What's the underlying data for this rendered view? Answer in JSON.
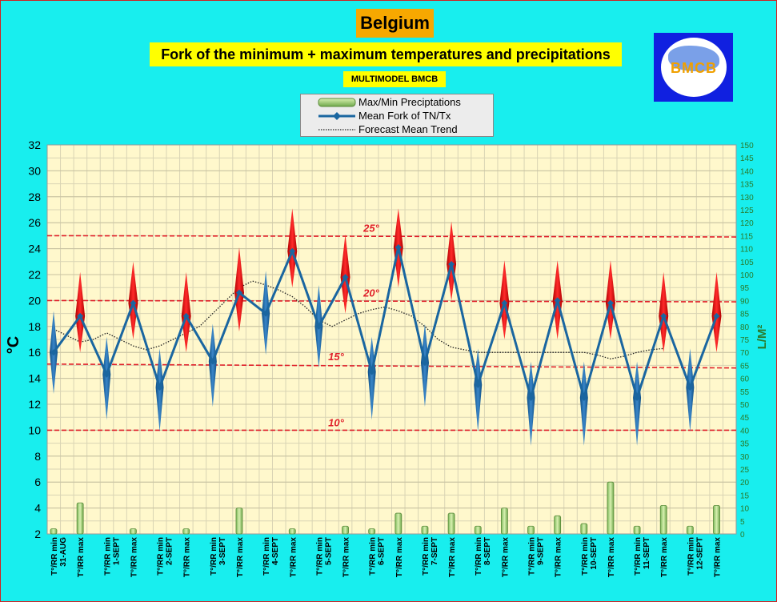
{
  "header": {
    "title": "Belgium",
    "subtitle": "Fork of the minimum + maximum temperatures and precipitations",
    "tag": "MULTIMODEL BMCB",
    "logo_text": "BMCB"
  },
  "legend": {
    "precip": "Max/Min Preciptations",
    "mean": "Mean Fork of TN/Tx",
    "trend": "Forecast Mean Trend"
  },
  "chart_data": {
    "type": "line",
    "ylabel": "°C",
    "y2label": "L/M²",
    "ylim": [
      2,
      32
    ],
    "y2lim": [
      0,
      150
    ],
    "yticks": [
      2,
      4,
      6,
      8,
      10,
      12,
      14,
      16,
      18,
      20,
      22,
      24,
      26,
      28,
      30,
      32
    ],
    "y2ticks": [
      0,
      5,
      10,
      15,
      20,
      25,
      30,
      35,
      40,
      45,
      50,
      55,
      60,
      65,
      70,
      75,
      80,
      85,
      90,
      95,
      100,
      105,
      110,
      115,
      120,
      125,
      130,
      135,
      140,
      145,
      150
    ],
    "categories": [
      {
        "label": "T°/RR min",
        "date": "31-AUG"
      },
      {
        "label": "T°/RR max",
        "date": ""
      },
      {
        "label": "T°/RR min",
        "date": "1-SEPT"
      },
      {
        "label": "T°/RR max",
        "date": ""
      },
      {
        "label": "T°/RR min",
        "date": "2-SEPT"
      },
      {
        "label": "T°/RR max",
        "date": ""
      },
      {
        "label": "T°/RR min",
        "date": "3-SEPT"
      },
      {
        "label": "T°/RR max",
        "date": ""
      },
      {
        "label": "T°/RR min",
        "date": "4-SEPT"
      },
      {
        "label": "T°/RR max",
        "date": ""
      },
      {
        "label": "T°/RR min",
        "date": "5-SEPT"
      },
      {
        "label": "T°/RR max",
        "date": ""
      },
      {
        "label": "T°/RR min",
        "date": "6-SEPT"
      },
      {
        "label": "T°/RR max",
        "date": ""
      },
      {
        "label": "T°/RR min",
        "date": "7-SEPT"
      },
      {
        "label": "T°/RR max",
        "date": ""
      },
      {
        "label": "T°/RR min",
        "date": "8-SEPT"
      },
      {
        "label": "T°/RR max",
        "date": ""
      },
      {
        "label": "T°/RR min",
        "date": "9-SEPT"
      },
      {
        "label": "T°/RR max",
        "date": ""
      },
      {
        "label": "T°/RR min",
        "date": "10-SEPT"
      },
      {
        "label": "T°/RR max",
        "date": ""
      },
      {
        "label": "T°/RR min",
        "date": "11-SEPT"
      },
      {
        "label": "T°/RR max",
        "date": ""
      },
      {
        "label": "T°/RR min",
        "date": "12-SEPT"
      },
      {
        "label": "T°/RR max",
        "date": ""
      }
    ],
    "mean": [
      16.0,
      18.8,
      14.3,
      19.8,
      13.3,
      18.8,
      15.3,
      20.6,
      19.0,
      23.8,
      18.0,
      21.8,
      14.5,
      24.1,
      15.2,
      22.8,
      13.5,
      19.8,
      12.5,
      20.0,
      12.5,
      19.8,
      12.5,
      18.8,
      13.3,
      18.8
    ],
    "fork_min": [
      12.8,
      16.0,
      10.8,
      17.0,
      9.9,
      16.0,
      11.8,
      17.6,
      15.8,
      21.0,
      14.8,
      19.0,
      10.8,
      21.0,
      11.8,
      20.0,
      9.9,
      17.0,
      8.8,
      17.0,
      8.8,
      17.0,
      8.8,
      16.0,
      9.9,
      16.0
    ],
    "fork_max": [
      19.2,
      22.2,
      17.2,
      23.0,
      16.3,
      22.2,
      18.2,
      24.1,
      22.3,
      27.1,
      21.2,
      25.1,
      17.2,
      27.1,
      18.2,
      26.1,
      16.3,
      23.1,
      15.3,
      23.1,
      15.3,
      23.1,
      15.3,
      22.2,
      16.3,
      22.2
    ],
    "trend": [
      17.8,
      17.3,
      16.8,
      17.0,
      17.5,
      17.0,
      16.5,
      16.2,
      16.5,
      17.0,
      17.5,
      18.0,
      19.0,
      20.0,
      21.0,
      21.5,
      21.2,
      20.8,
      20.3,
      19.5,
      18.5,
      18.0,
      18.5,
      19.0,
      19.3,
      19.5,
      19.2,
      18.8,
      18.0,
      17.0,
      16.4,
      16.2,
      16.0,
      16.0,
      16.0,
      16.0,
      16.0,
      16.0,
      16.0,
      15.8,
      15.5,
      15.7,
      16.0,
      16.2,
      16.3
    ],
    "trend_x": [
      0,
      0.5,
      1,
      1.5,
      2,
      2.5,
      3,
      3.5,
      4,
      4.5,
      5,
      5.5,
      6,
      6.5,
      7,
      7.5,
      8,
      8.5,
      9,
      9.5,
      10,
      10.5,
      11,
      11.5,
      12,
      12.5,
      13,
      13.5,
      14,
      14.5,
      15,
      15.5,
      16,
      17,
      17.5,
      18,
      18.5,
      19,
      20,
      20.5,
      21,
      21.5,
      22,
      22.5,
      23
    ],
    "precip": [
      2,
      12,
      0,
      2,
      0,
      2,
      0,
      10,
      0,
      2,
      0,
      3,
      2,
      8,
      3,
      8,
      3,
      10,
      3,
      7,
      4,
      20,
      3,
      11,
      3,
      11
    ],
    "reference_lines": [
      {
        "value": 25,
        "label": "25°",
        "end_value": 24.9
      },
      {
        "value": 20,
        "label": "20°",
        "end_value": 19.9
      },
      {
        "value": 15.1,
        "label": "15°",
        "end_value": 14.8
      },
      {
        "value": 10,
        "label": "10°",
        "end_value": 10
      }
    ],
    "grid": true,
    "legend_position": "top-center"
  }
}
